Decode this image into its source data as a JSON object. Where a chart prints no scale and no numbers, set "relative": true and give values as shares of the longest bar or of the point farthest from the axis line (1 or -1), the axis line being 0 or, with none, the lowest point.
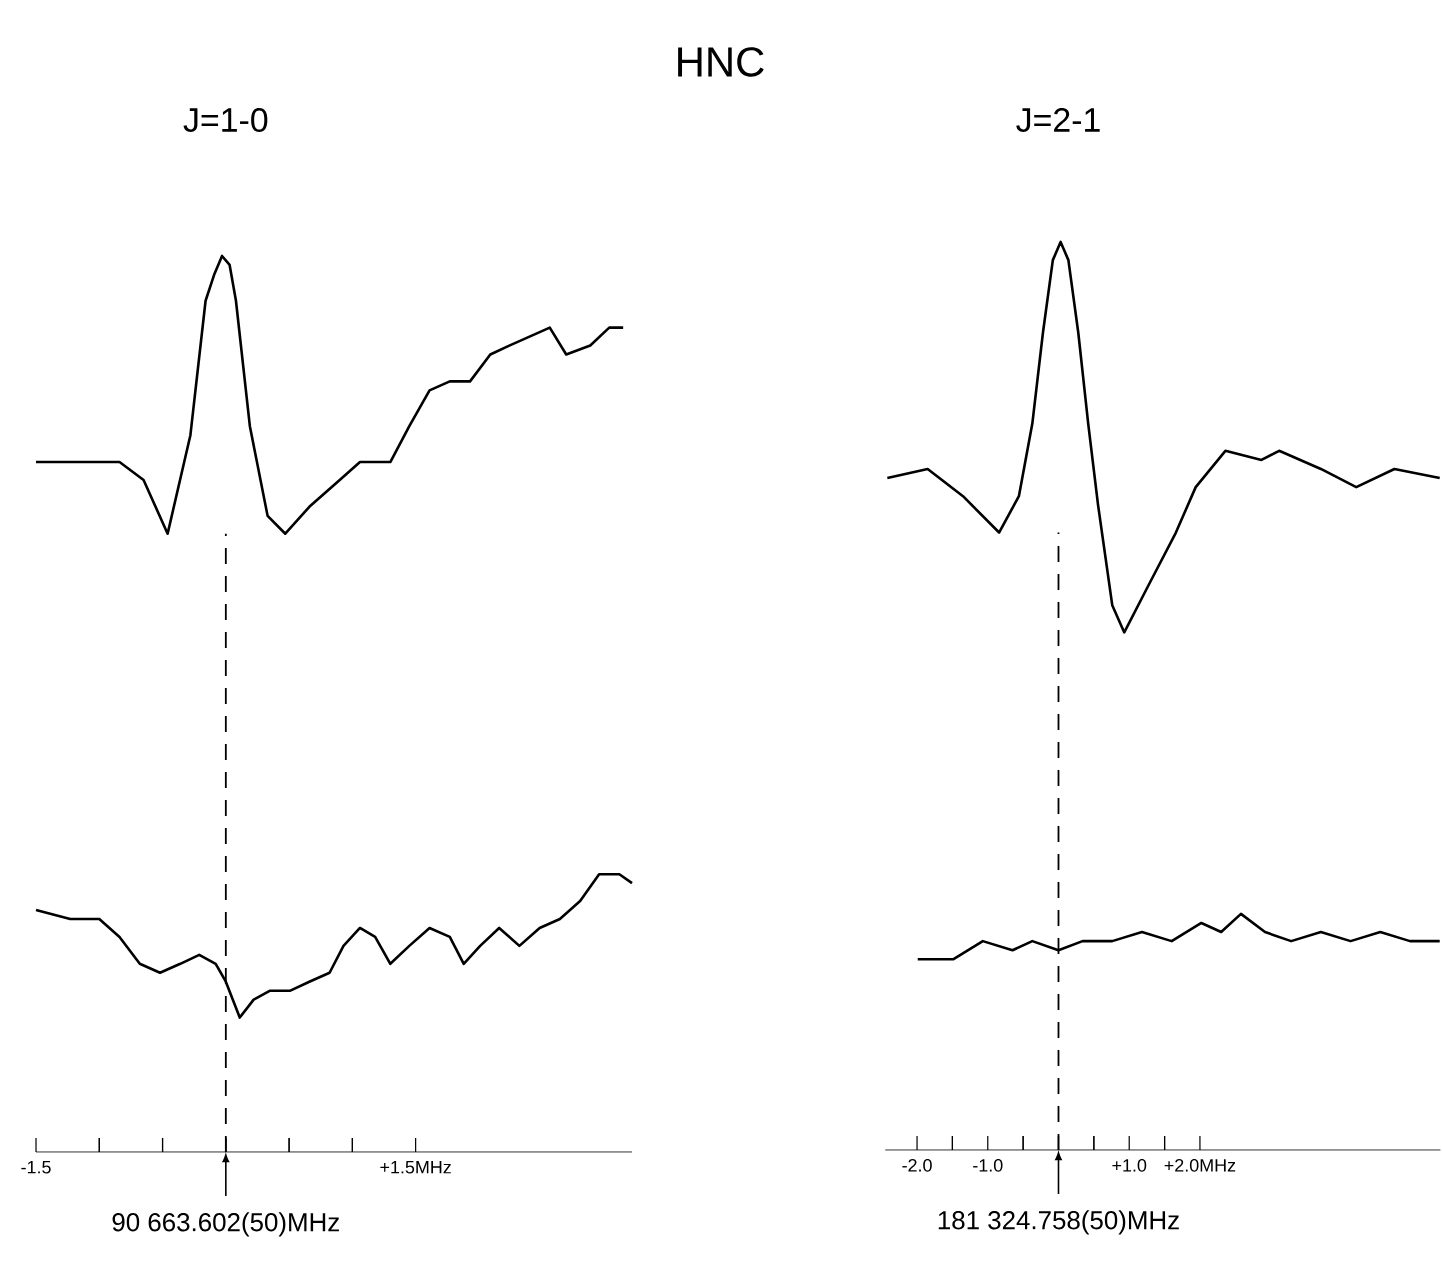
{
  "chart_data": [
    {
      "type": "line",
      "subtitle": "J=1-0",
      "relative": true,
      "marker": "none",
      "line_style": "solid",
      "xlim": [
        -1.5,
        3.21
      ],
      "xticks": [
        {
          "value": -1.5,
          "label": "-1.5"
        },
        {
          "value": -1.0,
          "label": null
        },
        {
          "value": -0.5,
          "label": null
        },
        {
          "value": 0,
          "label": null
        },
        {
          "value": 0.5,
          "label": null
        },
        {
          "value": 1.0,
          "label": null
        },
        {
          "value": 1.5,
          "label": "+1.5MHz"
        }
      ],
      "ref_lines": [
        {
          "axis": "x",
          "value": 0,
          "line_style": "dashed",
          "color": "#000000"
        }
      ],
      "annotations": [
        "90 663.602(50)MHz"
      ],
      "series": [
        {
          "color": "#000000",
          "x": [
            -1.5,
            -1.15,
            -0.84,
            -0.65,
            -0.46,
            -0.28,
            -0.16,
            -0.09,
            -0.03,
            0.03,
            0.08,
            0.19,
            0.33,
            0.47,
            0.66,
            0.9,
            1.06,
            1.3,
            1.45,
            1.61,
            1.77,
            1.93,
            2.09,
            2.24,
            2.4,
            2.56,
            2.69,
            2.88,
            3.03,
            3.14
          ],
          "values": [
            0.77,
            0.77,
            0.77,
            0.75,
            0.69,
            0.8,
            0.95,
            0.98,
            1.0,
            0.99,
            0.95,
            0.81,
            0.71,
            0.69,
            0.72,
            0.75,
            0.77,
            0.77,
            0.81,
            0.85,
            0.86,
            0.86,
            0.89,
            0.9,
            0.91,
            0.92,
            0.89,
            0.9,
            0.92,
            0.92
          ]
        },
        {
          "color": "#000000",
          "x": [
            -1.5,
            -1.23,
            -1.0,
            -0.84,
            -0.68,
            -0.52,
            -0.36,
            -0.21,
            -0.08,
            0.0,
            0.11,
            0.22,
            0.35,
            0.51,
            0.66,
            0.82,
            0.93,
            1.06,
            1.18,
            1.3,
            1.45,
            1.61,
            1.77,
            1.88,
            2.01,
            2.16,
            2.32,
            2.48,
            2.64,
            2.8,
            2.95,
            3.11,
            3.21
          ],
          "values": [
            0.27,
            0.26,
            0.26,
            0.24,
            0.21,
            0.2,
            0.21,
            0.22,
            0.21,
            0.19,
            0.15,
            0.17,
            0.18,
            0.18,
            0.19,
            0.2,
            0.23,
            0.25,
            0.24,
            0.21,
            0.23,
            0.25,
            0.24,
            0.21,
            0.23,
            0.25,
            0.23,
            0.25,
            0.26,
            0.28,
            0.31,
            0.31,
            0.3
          ]
        }
      ]
    },
    {
      "type": "line",
      "title": "HNC",
      "subtitle": "J=2-1",
      "relative": true,
      "marker": "none",
      "line_style": "solid",
      "xlim": [
        -2.45,
        5.4
      ],
      "xticks": [
        {
          "value": -2.0,
          "label": "-2.0"
        },
        {
          "value": -1.5,
          "label": null
        },
        {
          "value": -1.0,
          "label": "-1.0"
        },
        {
          "value": -0.5,
          "label": null
        },
        {
          "value": 0,
          "label": null
        },
        {
          "value": 0.5,
          "label": null
        },
        {
          "value": 1.0,
          "label": "+1.0"
        },
        {
          "value": 1.5,
          "label": null
        },
        {
          "value": 2.0,
          "label": "+2.0MHz"
        }
      ],
      "ref_lines": [
        {
          "axis": "x",
          "value": 0,
          "line_style": "dashed",
          "color": "#000000"
        }
      ],
      "annotations": [
        "181 324.758(50)MHz"
      ],
      "series": [
        {
          "color": "#000000",
          "x": [
            -2.42,
            -1.85,
            -1.35,
            -0.84,
            -0.56,
            -0.37,
            -0.22,
            -0.08,
            0.03,
            0.14,
            0.28,
            0.42,
            0.56,
            0.76,
            0.93,
            1.26,
            1.66,
            1.94,
            2.36,
            2.87,
            3.12,
            3.71,
            4.21,
            4.75,
            5.39
          ],
          "values": [
            0.74,
            0.75,
            0.72,
            0.68,
            0.72,
            0.8,
            0.9,
            0.98,
            1.0,
            0.98,
            0.9,
            0.8,
            0.71,
            0.6,
            0.57,
            0.62,
            0.68,
            0.73,
            0.77,
            0.76,
            0.77,
            0.75,
            0.73,
            0.75,
            0.74
          ]
        },
        {
          "color": "#000000",
          "x": [
            -1.99,
            -1.49,
            -1.07,
            -0.65,
            -0.37,
            0.0,
            0.34,
            0.76,
            1.18,
            1.6,
            2.02,
            2.3,
            2.58,
            2.92,
            3.29,
            3.71,
            4.13,
            4.55,
            4.97,
            5.39
          ],
          "values": [
            0.21,
            0.21,
            0.23,
            0.22,
            0.23,
            0.22,
            0.23,
            0.23,
            0.24,
            0.23,
            0.25,
            0.24,
            0.26,
            0.24,
            0.23,
            0.24,
            0.23,
            0.24,
            0.23,
            0.23
          ]
        }
      ]
    }
  ]
}
